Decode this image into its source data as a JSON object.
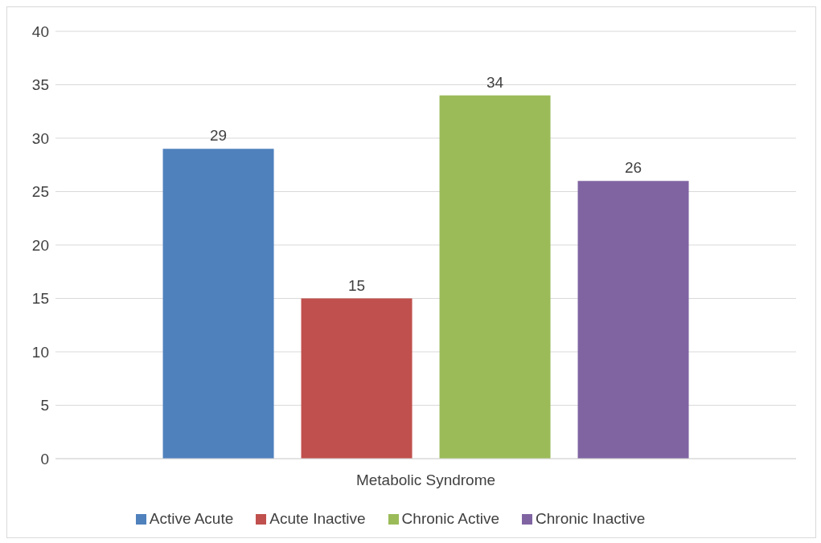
{
  "chart_data": {
    "type": "bar",
    "categories": [
      "Metabolic Syndrome"
    ],
    "series": [
      {
        "name": "Active Acute",
        "color": "#4f81bd",
        "values": [
          29
        ]
      },
      {
        "name": "Acute Inactive",
        "color": "#c0504d",
        "values": [
          15
        ]
      },
      {
        "name": "Chronic Active",
        "color": "#9bbb59",
        "values": [
          34
        ]
      },
      {
        "name": "Chronic Inactive",
        "color": "#8064a2",
        "values": [
          26
        ]
      }
    ],
    "ylim": [
      0,
      40
    ],
    "yticks": [
      0,
      5,
      10,
      15,
      20,
      25,
      30,
      35,
      40
    ],
    "grid": "y",
    "legend": "bottom",
    "data_labels": true
  }
}
